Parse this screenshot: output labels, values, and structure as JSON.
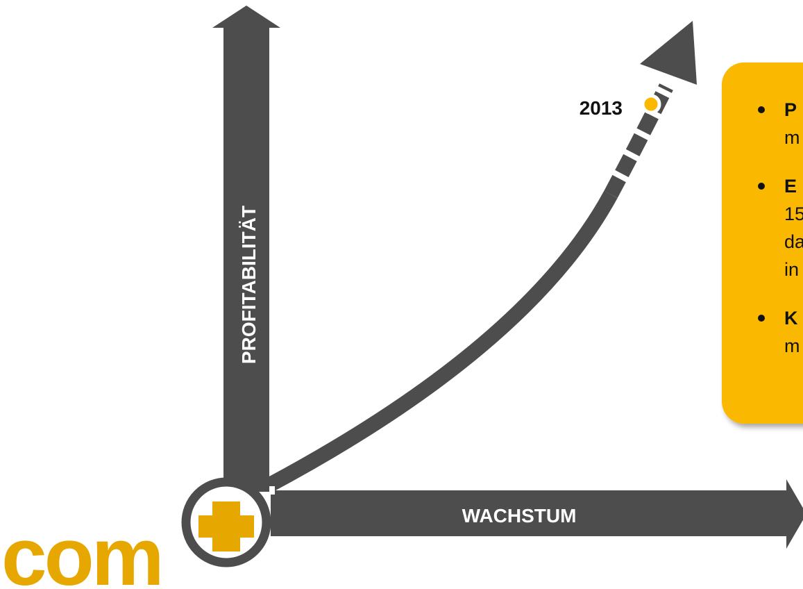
{
  "axes": {
    "y_label": "PROFITABILITÄT",
    "x_label": "WACHSTUM"
  },
  "marker": {
    "label": "2013"
  },
  "logo": {
    "text": "com"
  },
  "box": {
    "items": [
      {
        "bold": "P",
        "lines": [
          "m"
        ]
      },
      {
        "bold": "E",
        "lines": [
          "15",
          "da",
          "in"
        ]
      },
      {
        "bold": "K",
        "lines": [
          "m"
        ]
      }
    ]
  }
}
